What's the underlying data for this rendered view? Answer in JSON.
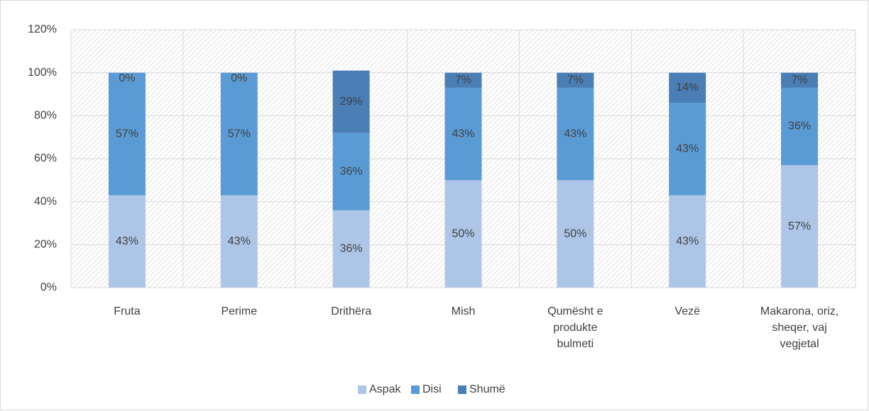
{
  "chart_data": {
    "type": "stacked_bar",
    "categories": [
      "Fruta",
      "Perime",
      "Drithëra",
      "Mish",
      "Qumësht e produkte bulmeti",
      "Vezë",
      "Makarona, oriz, sheqer, vaj vegjetal"
    ],
    "series": [
      {
        "name": "Aspak",
        "color": "#adc5e7",
        "values": [
          43,
          43,
          36,
          50,
          50,
          43,
          57
        ],
        "value_labels": [
          "43%",
          "43%",
          "36%",
          "50%",
          "50%",
          "43%",
          "57%"
        ]
      },
      {
        "name": "Disi",
        "color": "#5b9bd5",
        "values": [
          57,
          57,
          36,
          43,
          43,
          43,
          36
        ],
        "value_labels": [
          "57%",
          "57%",
          "36%",
          "43%",
          "43%",
          "43%",
          "36%"
        ]
      },
      {
        "name": "Shumë",
        "color": "#4a7eb4",
        "values": [
          0,
          0,
          29,
          7,
          7,
          14,
          7
        ],
        "value_labels": [
          "0%",
          "0%",
          "29%",
          "7%",
          "7%",
          "14%",
          "7%"
        ]
      }
    ],
    "ylim": [
      0,
      120
    ],
    "yticks": [
      {
        "value": 0,
        "label": "0%"
      },
      {
        "value": 20,
        "label": "20%"
      },
      {
        "value": 40,
        "label": "40%"
      },
      {
        "value": 60,
        "label": "60%"
      },
      {
        "value": 80,
        "label": "80%"
      },
      {
        "value": 100,
        "label": "100%"
      },
      {
        "value": 120,
        "label": "120%"
      }
    ],
    "grid": true,
    "legend": "bottom"
  }
}
